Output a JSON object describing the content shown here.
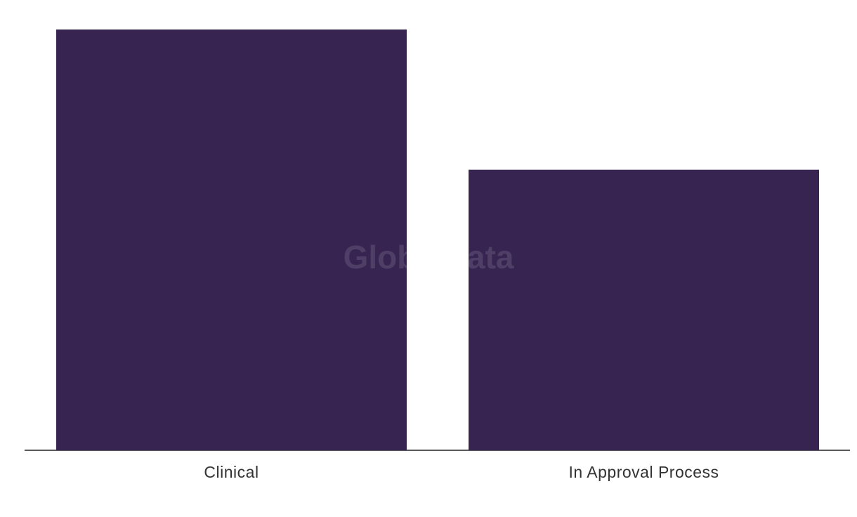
{
  "chart_data": {
    "type": "bar",
    "watermark": "GlobalData",
    "categories": [
      "Clinical",
      "In Approval Process"
    ],
    "values": [
      3,
      2
    ],
    "color": "#372451"
  }
}
